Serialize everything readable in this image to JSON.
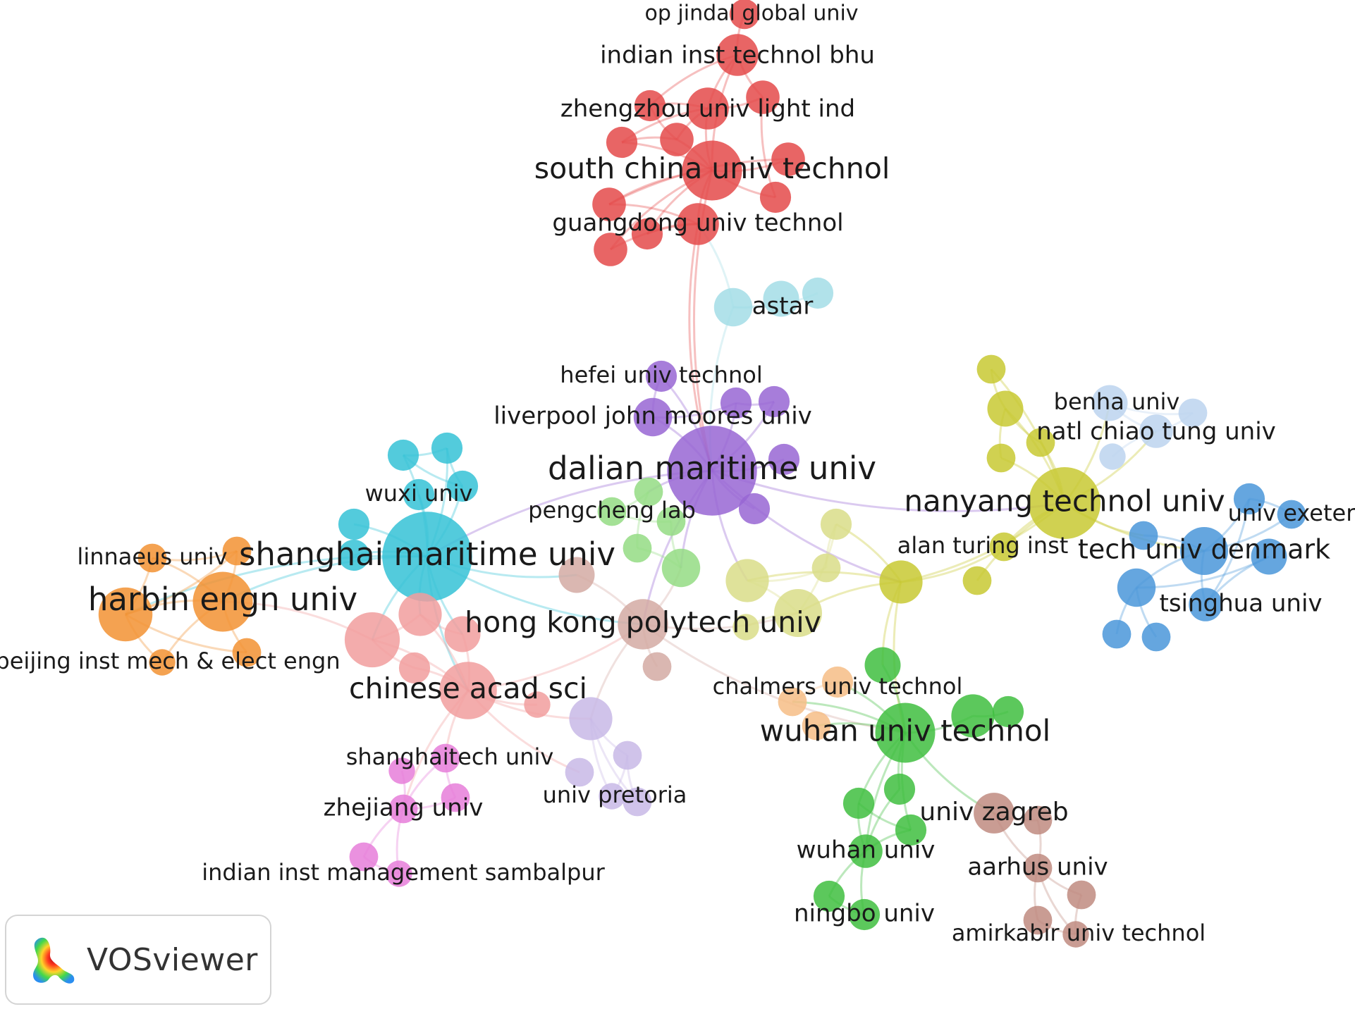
{
  "app": {
    "name": "VOSviewer"
  },
  "clusters": {
    "red": "#e44a4a",
    "purple": "#9866d4",
    "cyan": "#35c2d6",
    "lightcyan": "#a3dde6",
    "orange": "#f29233",
    "pink": "#f19d9d",
    "green": "#3fbe3f",
    "lightgreen": "#94dc84",
    "yellow": "#c8c932",
    "lightyellow": "#d9dd88",
    "blue": "#4a97d9",
    "lightblue": "#bcd4ef",
    "brown": "#c08b80",
    "magenta": "#e67ed9",
    "lavender": "#c8b8e6",
    "peach": "#f6bd86",
    "rosybrown": "#d3aaa3"
  },
  "nodes": [
    {
      "id": "op-jindal",
      "label": "op jindal global univ",
      "cluster": "red",
      "size": 2.5,
      "label_size": 1.0
    },
    {
      "id": "iit-bhu",
      "label": "indian inst technol bhu",
      "cluster": "red",
      "size": 3.5,
      "label_size": 1.12
    },
    {
      "id": "zhengzhou",
      "label": "zhengzhou univ light ind",
      "cluster": "red",
      "size": 3.5,
      "label_size": 1.12
    },
    {
      "id": "scut",
      "label": "south china univ technol",
      "cluster": "red",
      "size": 5,
      "label_size": 1.35
    },
    {
      "id": "gdut",
      "label": "guangdong univ technol",
      "cluster": "red",
      "size": 3.5,
      "label_size": 1.12
    },
    {
      "id": "red-a",
      "label": "",
      "cluster": "red",
      "size": 2.6
    },
    {
      "id": "red-b",
      "label": "",
      "cluster": "red",
      "size": 2.8
    },
    {
      "id": "red-c",
      "label": "",
      "cluster": "red",
      "size": 2.6
    },
    {
      "id": "red-d",
      "label": "",
      "cluster": "red",
      "size": 2.8
    },
    {
      "id": "red-e",
      "label": "",
      "cluster": "red",
      "size": 2.8
    },
    {
      "id": "red-f",
      "label": "",
      "cluster": "red",
      "size": 2.6
    },
    {
      "id": "red-g",
      "label": "",
      "cluster": "red",
      "size": 2.6
    },
    {
      "id": "red-h",
      "label": "",
      "cluster": "red",
      "size": 2.8
    },
    {
      "id": "red-i",
      "label": "",
      "cluster": "red",
      "size": 2.8
    },
    {
      "id": "astar",
      "label": "astar",
      "cluster": "lightcyan",
      "size": 3.2,
      "label_size": 1.12
    },
    {
      "id": "astar-b",
      "label": "",
      "cluster": "lightcyan",
      "size": 3.0
    },
    {
      "id": "astar-c",
      "label": "",
      "cluster": "lightcyan",
      "size": 2.6
    },
    {
      "id": "hefei",
      "label": "hefei univ technol",
      "cluster": "purple",
      "size": 2.6,
      "label_size": 1.08
    },
    {
      "id": "ljmu",
      "label": "liverpool john moores univ",
      "cluster": "purple",
      "size": 3.2,
      "label_size": 1.12
    },
    {
      "id": "dmu",
      "label": "dalian maritime univ",
      "cluster": "purple",
      "size": 7.5,
      "label_size": 1.5
    },
    {
      "id": "pur-a",
      "label": "",
      "cluster": "purple",
      "size": 2.6
    },
    {
      "id": "pur-b",
      "label": "",
      "cluster": "purple",
      "size": 2.6
    },
    {
      "id": "pur-c",
      "label": "",
      "cluster": "purple",
      "size": 2.6
    },
    {
      "id": "pur-d",
      "label": "",
      "cluster": "purple",
      "size": 2.6
    },
    {
      "id": "wuxi",
      "label": "wuxi univ",
      "cluster": "cyan",
      "size": 2.6,
      "label_size": 1.08
    },
    {
      "id": "smu",
      "label": "shanghai maritime univ",
      "cluster": "cyan",
      "size": 7.5,
      "label_size": 1.5
    },
    {
      "id": "cyan-a",
      "label": "",
      "cluster": "cyan",
      "size": 2.6
    },
    {
      "id": "cyan-b",
      "label": "",
      "cluster": "cyan",
      "size": 2.6
    },
    {
      "id": "cyan-c",
      "label": "",
      "cluster": "cyan",
      "size": 2.6
    },
    {
      "id": "cyan-d",
      "label": "",
      "cluster": "cyan",
      "size": 2.6
    },
    {
      "id": "cyan-e",
      "label": "",
      "cluster": "cyan",
      "size": 2.6
    },
    {
      "id": "linnaeus",
      "label": "linnaeus univ",
      "cluster": "orange",
      "size": 2.4,
      "label_size": 1.08
    },
    {
      "id": "heu",
      "label": "harbin engn univ",
      "cluster": "orange",
      "size": 5,
      "label_size": 1.5
    },
    {
      "id": "bimee",
      "label": "beijing inst mech & elect engn",
      "cluster": "orange",
      "size": 2.2,
      "label_size": 1.08
    },
    {
      "id": "or-a",
      "label": "",
      "cluster": "orange",
      "size": 4.5
    },
    {
      "id": "or-b",
      "label": "",
      "cluster": "orange",
      "size": 2.4
    },
    {
      "id": "or-c",
      "label": "",
      "cluster": "orange",
      "size": 2.4
    },
    {
      "id": "cas",
      "label": "chinese acad sci",
      "cluster": "pink",
      "size": 4.8,
      "label_size": 1.35
    },
    {
      "id": "pk-a",
      "label": "",
      "cluster": "pink",
      "size": 4.6
    },
    {
      "id": "pk-b",
      "label": "",
      "cluster": "pink",
      "size": 3.6
    },
    {
      "id": "pk-c",
      "label": "",
      "cluster": "pink",
      "size": 3.0
    },
    {
      "id": "pk-d",
      "label": "",
      "cluster": "pink",
      "size": 2.6
    },
    {
      "id": "pk-e",
      "label": "",
      "cluster": "pink",
      "size": 2.2
    },
    {
      "id": "polyu",
      "label": "hong kong polytech univ",
      "cluster": "rosybrown",
      "size": 4.2,
      "label_size": 1.35
    },
    {
      "id": "rb-a",
      "label": "",
      "cluster": "rosybrown",
      "size": 3.0
    },
    {
      "id": "rb-b",
      "label": "",
      "cluster": "rosybrown",
      "size": 2.4
    },
    {
      "id": "pengcheng",
      "label": "pengcheng lab",
      "cluster": "lightgreen",
      "size": 2.4,
      "label_size": 1.08
    },
    {
      "id": "lg-a",
      "label": "",
      "cluster": "lightgreen",
      "size": 2.4
    },
    {
      "id": "lg-b",
      "label": "",
      "cluster": "lightgreen",
      "size": 2.4
    },
    {
      "id": "lg-c",
      "label": "",
      "cluster": "lightgreen",
      "size": 3.2
    },
    {
      "id": "lg-d",
      "label": "",
      "cluster": "lightgreen",
      "size": 2.4
    },
    {
      "id": "shanghaitech",
      "label": "shanghaitech univ",
      "cluster": "magenta",
      "size": 2.4,
      "label_size": 1.08
    },
    {
      "id": "zju",
      "label": "zhejiang univ",
      "cluster": "magenta",
      "size": 2.4,
      "label_size": 1.12
    },
    {
      "id": "iim-sambalpur",
      "label": "indian inst management sambalpur",
      "cluster": "magenta",
      "size": 2.2,
      "label_size": 1.08
    },
    {
      "id": "mg-a",
      "label": "",
      "cluster": "magenta",
      "size": 2.4
    },
    {
      "id": "mg-b",
      "label": "",
      "cluster": "magenta",
      "size": 2.4
    },
    {
      "id": "mg-c",
      "label": "",
      "cluster": "magenta",
      "size": 2.2
    },
    {
      "id": "pretoria",
      "label": "univ pretoria",
      "cluster": "lavender",
      "size": 2.2,
      "label_size": 1.08
    },
    {
      "id": "lv-a",
      "label": "",
      "cluster": "lavender",
      "size": 3.6
    },
    {
      "id": "lv-b",
      "label": "",
      "cluster": "lavender",
      "size": 2.4
    },
    {
      "id": "lv-c",
      "label": "",
      "cluster": "lavender",
      "size": 2.4
    },
    {
      "id": "lv-d",
      "label": "",
      "cluster": "lavender",
      "size": 2.4
    },
    {
      "id": "benha",
      "label": "benha univ",
      "cluster": "lightblue",
      "size": 3.0,
      "label_size": 1.08
    },
    {
      "id": "nctu",
      "label": "natl chiao tung univ",
      "cluster": "lightblue",
      "size": 2.8,
      "label_size": 1.12
    },
    {
      "id": "lb-a",
      "label": "",
      "cluster": "lightblue",
      "size": 2.4
    },
    {
      "id": "lb-b",
      "label": "",
      "cluster": "lightblue",
      "size": 2.2
    },
    {
      "id": "ntu",
      "label": "nanyang technol univ",
      "cluster": "yellow",
      "size": 6,
      "label_size": 1.4
    },
    {
      "id": "turing",
      "label": "alan turing inst",
      "cluster": "yellow",
      "size": 2.4,
      "label_size": 1.08
    },
    {
      "id": "ye-a",
      "label": "",
      "cluster": "yellow",
      "size": 2.4
    },
    {
      "id": "ye-b",
      "label": "",
      "cluster": "yellow",
      "size": 3.0
    },
    {
      "id": "ye-c",
      "label": "",
      "cluster": "yellow",
      "size": 2.4
    },
    {
      "id": "ye-d",
      "label": "",
      "cluster": "yellow",
      "size": 2.4
    },
    {
      "id": "ye-e",
      "label": "",
      "cluster": "yellow",
      "size": 2.4
    },
    {
      "id": "ye-f",
      "label": "",
      "cluster": "yellow",
      "size": 3.6
    },
    {
      "id": "ly-a",
      "label": "",
      "cluster": "lightyellow",
      "size": 4.0
    },
    {
      "id": "ly-b",
      "label": "",
      "cluster": "lightyellow",
      "size": 3.6
    },
    {
      "id": "ly-c",
      "label": "",
      "cluster": "lightyellow",
      "size": 2.6
    },
    {
      "id": "ly-d",
      "label": "",
      "cluster": "lightyellow",
      "size": 2.4
    },
    {
      "id": "ly-e",
      "label": "",
      "cluster": "lightyellow",
      "size": 2.2
    },
    {
      "id": "exeter",
      "label": "univ exeter",
      "cluster": "blue",
      "size": 2.4,
      "label_size": 1.08
    },
    {
      "id": "dtu",
      "label": "tech univ denmark",
      "cluster": "blue",
      "size": 4.0,
      "label_size": 1.25
    },
    {
      "id": "tsinghua",
      "label": "tsinghua univ",
      "cluster": "blue",
      "size": 2.8,
      "label_size": 1.12
    },
    {
      "id": "bl-a",
      "label": "",
      "cluster": "blue",
      "size": 2.4
    },
    {
      "id": "bl-b",
      "label": "",
      "cluster": "blue",
      "size": 2.6
    },
    {
      "id": "bl-c",
      "label": "",
      "cluster": "blue",
      "size": 3.2
    },
    {
      "id": "bl-d",
      "label": "",
      "cluster": "blue",
      "size": 2.4
    },
    {
      "id": "bl-e",
      "label": "",
      "cluster": "blue",
      "size": 2.4
    },
    {
      "id": "bl-f",
      "label": "",
      "cluster": "blue",
      "size": 3.0
    },
    {
      "id": "chalmers",
      "label": "chalmers univ technol",
      "cluster": "peach",
      "size": 2.6,
      "label_size": 1.08
    },
    {
      "id": "pe-a",
      "label": "",
      "cluster": "peach",
      "size": 2.4
    },
    {
      "id": "pe-b",
      "label": "",
      "cluster": "peach",
      "size": 2.4
    },
    {
      "id": "whut",
      "label": "wuhan univ technol",
      "cluster": "green",
      "size": 5.0,
      "label_size": 1.4
    },
    {
      "id": "whu",
      "label": "wuhan univ",
      "cluster": "green",
      "size": 2.8,
      "label_size": 1.12
    },
    {
      "id": "nbu",
      "label": "ningbo univ",
      "cluster": "green",
      "size": 2.6,
      "label_size": 1.12
    },
    {
      "id": "gr-a",
      "label": "",
      "cluster": "green",
      "size": 3.0
    },
    {
      "id": "gr-b",
      "label": "",
      "cluster": "green",
      "size": 3.6
    },
    {
      "id": "gr-c",
      "label": "",
      "cluster": "green",
      "size": 2.6
    },
    {
      "id": "gr-d",
      "label": "",
      "cluster": "green",
      "size": 2.6
    },
    {
      "id": "gr-e",
      "label": "",
      "cluster": "green",
      "size": 2.6
    },
    {
      "id": "gr-f",
      "label": "",
      "cluster": "green",
      "size": 2.6
    },
    {
      "id": "gr-g",
      "label": "",
      "cluster": "green",
      "size": 2.6
    },
    {
      "id": "zagreb",
      "label": "univ zagreb",
      "cluster": "brown",
      "size": 3.4,
      "label_size": 1.2
    },
    {
      "id": "aarhus",
      "label": "aarhus univ",
      "cluster": "brown",
      "size": 2.4,
      "label_size": 1.12
    },
    {
      "id": "amirkabir",
      "label": "amirkabir univ technol",
      "cluster": "brown",
      "size": 2.2,
      "label_size": 1.08
    },
    {
      "id": "br-a",
      "label": "",
      "cluster": "brown",
      "size": 2.4
    },
    {
      "id": "br-b",
      "label": "",
      "cluster": "brown",
      "size": 2.4
    },
    {
      "id": "br-c",
      "label": "",
      "cluster": "brown",
      "size": 2.4
    }
  ],
  "links": [
    [
      "op-jindal",
      "iit-bhu"
    ],
    [
      "iit-bhu",
      "zhengzhou"
    ],
    [
      "iit-bhu",
      "scut"
    ],
    [
      "iit-bhu",
      "red-d"
    ],
    [
      "iit-bhu",
      "red-a"
    ],
    [
      "zhengzhou",
      "scut"
    ],
    [
      "zhengzhou",
      "red-a"
    ],
    [
      "zhengzhou",
      "red-b"
    ],
    [
      "zhengzhou",
      "red-c"
    ],
    [
      "zhengzhou",
      "red-d"
    ],
    [
      "scut",
      "gdut"
    ],
    [
      "scut",
      "red-b"
    ],
    [
      "scut",
      "red-c"
    ],
    [
      "scut",
      "red-e"
    ],
    [
      "scut",
      "red-f"
    ],
    [
      "scut",
      "red-g"
    ],
    [
      "scut",
      "red-h"
    ],
    [
      "scut",
      "red-i"
    ],
    [
      "gdut",
      "red-h"
    ],
    [
      "gdut",
      "red-i"
    ],
    [
      "gdut",
      "red-g"
    ],
    [
      "red-a",
      "red-b"
    ],
    [
      "red-b",
      "red-c"
    ],
    [
      "red-d",
      "red-f"
    ],
    [
      "red-e",
      "red-h"
    ],
    [
      "scut",
      "dmu"
    ],
    [
      "gdut",
      "dmu"
    ],
    [
      "astar",
      "astar-b"
    ],
    [
      "astar",
      "astar-c"
    ],
    [
      "astar",
      "dmu"
    ],
    [
      "astar",
      "gdut"
    ],
    [
      "dmu",
      "hefei"
    ],
    [
      "dmu",
      "ljmu"
    ],
    [
      "dmu",
      "pur-a"
    ],
    [
      "dmu",
      "pur-b"
    ],
    [
      "dmu",
      "pur-c"
    ],
    [
      "dmu",
      "pur-d"
    ],
    [
      "hefei",
      "ljmu"
    ],
    [
      "ljmu",
      "pur-a"
    ],
    [
      "pur-a",
      "pur-b"
    ],
    [
      "dmu",
      "smu"
    ],
    [
      "dmu",
      "polyu"
    ],
    [
      "dmu",
      "lg-a"
    ],
    [
      "dmu",
      "lg-c"
    ],
    [
      "dmu",
      "ly-b"
    ],
    [
      "dmu",
      "ntu"
    ],
    [
      "dmu",
      "ye-f"
    ],
    [
      "smu",
      "wuxi"
    ],
    [
      "smu",
      "cyan-a"
    ],
    [
      "smu",
      "cyan-b"
    ],
    [
      "smu",
      "cyan-c"
    ],
    [
      "smu",
      "cyan-d"
    ],
    [
      "smu",
      "cyan-e"
    ],
    [
      "cyan-a",
      "cyan-b"
    ],
    [
      "cyan-b",
      "cyan-c"
    ],
    [
      "cyan-a",
      "cyan-c"
    ],
    [
      "smu",
      "heu"
    ],
    [
      "smu",
      "or-a"
    ],
    [
      "smu",
      "cas"
    ],
    [
      "smu",
      "pk-a"
    ],
    [
      "smu",
      "pk-b"
    ],
    [
      "smu",
      "pk-c"
    ],
    [
      "smu",
      "rb-a"
    ],
    [
      "smu",
      "polyu"
    ],
    [
      "heu",
      "or-a"
    ],
    [
      "heu",
      "linnaeus"
    ],
    [
      "heu",
      "bimee"
    ],
    [
      "heu",
      "or-b"
    ],
    [
      "heu",
      "or-c"
    ],
    [
      "or-a",
      "linnaeus"
    ],
    [
      "or-a",
      "bimee"
    ],
    [
      "or-a",
      "or-b"
    ],
    [
      "or-a",
      "or-c"
    ],
    [
      "linnaeus",
      "or-b"
    ],
    [
      "cas",
      "pk-a"
    ],
    [
      "cas",
      "pk-b"
    ],
    [
      "cas",
      "pk-c"
    ],
    [
      "cas",
      "pk-d"
    ],
    [
      "cas",
      "pk-e"
    ],
    [
      "pk-a",
      "pk-b"
    ],
    [
      "pk-a",
      "pk-d"
    ],
    [
      "pk-b",
      "pk-c"
    ],
    [
      "pk-a",
      "heu"
    ],
    [
      "cas",
      "polyu"
    ],
    [
      "cas",
      "shanghaitech"
    ],
    [
      "cas",
      "zju"
    ],
    [
      "cas",
      "lv-a"
    ],
    [
      "cas",
      "lv-b"
    ],
    [
      "polyu",
      "rb-a"
    ],
    [
      "polyu",
      "rb-b"
    ],
    [
      "polyu",
      "lg-c"
    ],
    [
      "polyu",
      "ly-a"
    ],
    [
      "polyu",
      "lv-a"
    ],
    [
      "polyu",
      "whut"
    ],
    [
      "pengcheng",
      "lg-a"
    ],
    [
      "pengcheng",
      "lg-b"
    ],
    [
      "lg-b",
      "lg-c"
    ],
    [
      "lg-a",
      "lg-d"
    ],
    [
      "lg-c",
      "lg-d"
    ],
    [
      "shanghaitech",
      "zju"
    ],
    [
      "shanghaitech",
      "mg-a"
    ],
    [
      "zju",
      "mg-a"
    ],
    [
      "zju",
      "iim-sambalpur"
    ],
    [
      "zju",
      "mg-b"
    ],
    [
      "zju",
      "mg-c"
    ],
    [
      "mg-b",
      "iim-sambalpur"
    ],
    [
      "lv-a",
      "pretoria"
    ],
    [
      "lv-a",
      "lv-c"
    ],
    [
      "lv-a",
      "lv-d"
    ],
    [
      "pretoria",
      "lv-c"
    ],
    [
      "lv-c",
      "lv-d"
    ],
    [
      "pretoria",
      "lv-d"
    ],
    [
      "ye-f",
      "ntu"
    ],
    [
      "ye-f",
      "ly-a"
    ],
    [
      "ye-f",
      "ly-b"
    ],
    [
      "ye-f",
      "ly-c"
    ],
    [
      "ye-f",
      "whut"
    ],
    [
      "ye-f",
      "turing"
    ],
    [
      "ye-f",
      "gr-a"
    ],
    [
      "ly-a",
      "ly-b"
    ],
    [
      "ly-a",
      "ly-c"
    ],
    [
      "ly-b",
      "ly-d"
    ],
    [
      "ly-c",
      "ly-d"
    ],
    [
      "ly-a",
      "ly-e"
    ],
    [
      "ntu",
      "turing"
    ],
    [
      "ntu",
      "ye-a"
    ],
    [
      "ntu",
      "ye-b"
    ],
    [
      "ntu",
      "ye-c"
    ],
    [
      "ntu",
      "ye-d"
    ],
    [
      "ntu",
      "ye-e"
    ],
    [
      "ye-a",
      "ye-b"
    ],
    [
      "ye-b",
      "ye-c"
    ],
    [
      "ye-b",
      "ye-d"
    ],
    [
      "ntu",
      "nctu"
    ],
    [
      "ntu",
      "benha"
    ],
    [
      "ntu",
      "dtu"
    ],
    [
      "ntu",
      "bl-a"
    ],
    [
      "benha",
      "nctu"
    ],
    [
      "benha",
      "lb-a"
    ],
    [
      "nctu",
      "lb-a"
    ],
    [
      "nctu",
      "lb-b"
    ],
    [
      "dtu",
      "exeter"
    ],
    [
      "dtu",
      "tsinghua"
    ],
    [
      "dtu",
      "bl-a"
    ],
    [
      "dtu",
      "bl-b"
    ],
    [
      "dtu",
      "bl-c"
    ],
    [
      "exeter",
      "bl-b"
    ],
    [
      "tsinghua",
      "bl-b"
    ],
    [
      "bl-c",
      "bl-d"
    ],
    [
      "bl-c",
      "bl-e"
    ],
    [
      "bl-c",
      "bl-f"
    ],
    [
      "bl-f",
      "tsinghua"
    ],
    [
      "whut",
      "chalmers"
    ],
    [
      "whut",
      "pe-a"
    ],
    [
      "whut",
      "pe-b"
    ],
    [
      "chalmers",
      "pe-a"
    ],
    [
      "whut",
      "gr-a"
    ],
    [
      "whut",
      "gr-b"
    ],
    [
      "whut",
      "gr-c"
    ],
    [
      "whut",
      "gr-d"
    ],
    [
      "whut",
      "gr-e"
    ],
    [
      "whut",
      "whu"
    ],
    [
      "whut",
      "zagreb"
    ],
    [
      "gr-b",
      "gr-g"
    ],
    [
      "gr-d",
      "gr-e"
    ],
    [
      "gr-d",
      "whu"
    ],
    [
      "gr-e",
      "whu"
    ],
    [
      "gr-c",
      "whu"
    ],
    [
      "whu",
      "nbu"
    ],
    [
      "whu",
      "gr-f"
    ],
    [
      "gr-f",
      "nbu"
    ],
    [
      "zagreb",
      "br-a"
    ],
    [
      "zagreb",
      "aarhus"
    ],
    [
      "aarhus",
      "br-a"
    ],
    [
      "aarhus",
      "br-b"
    ],
    [
      "aarhus",
      "br-c"
    ],
    [
      "br-b",
      "amirkabir"
    ],
    [
      "br-c",
      "amirkabir"
    ],
    [
      "aarhus",
      "amirkabir"
    ]
  ]
}
